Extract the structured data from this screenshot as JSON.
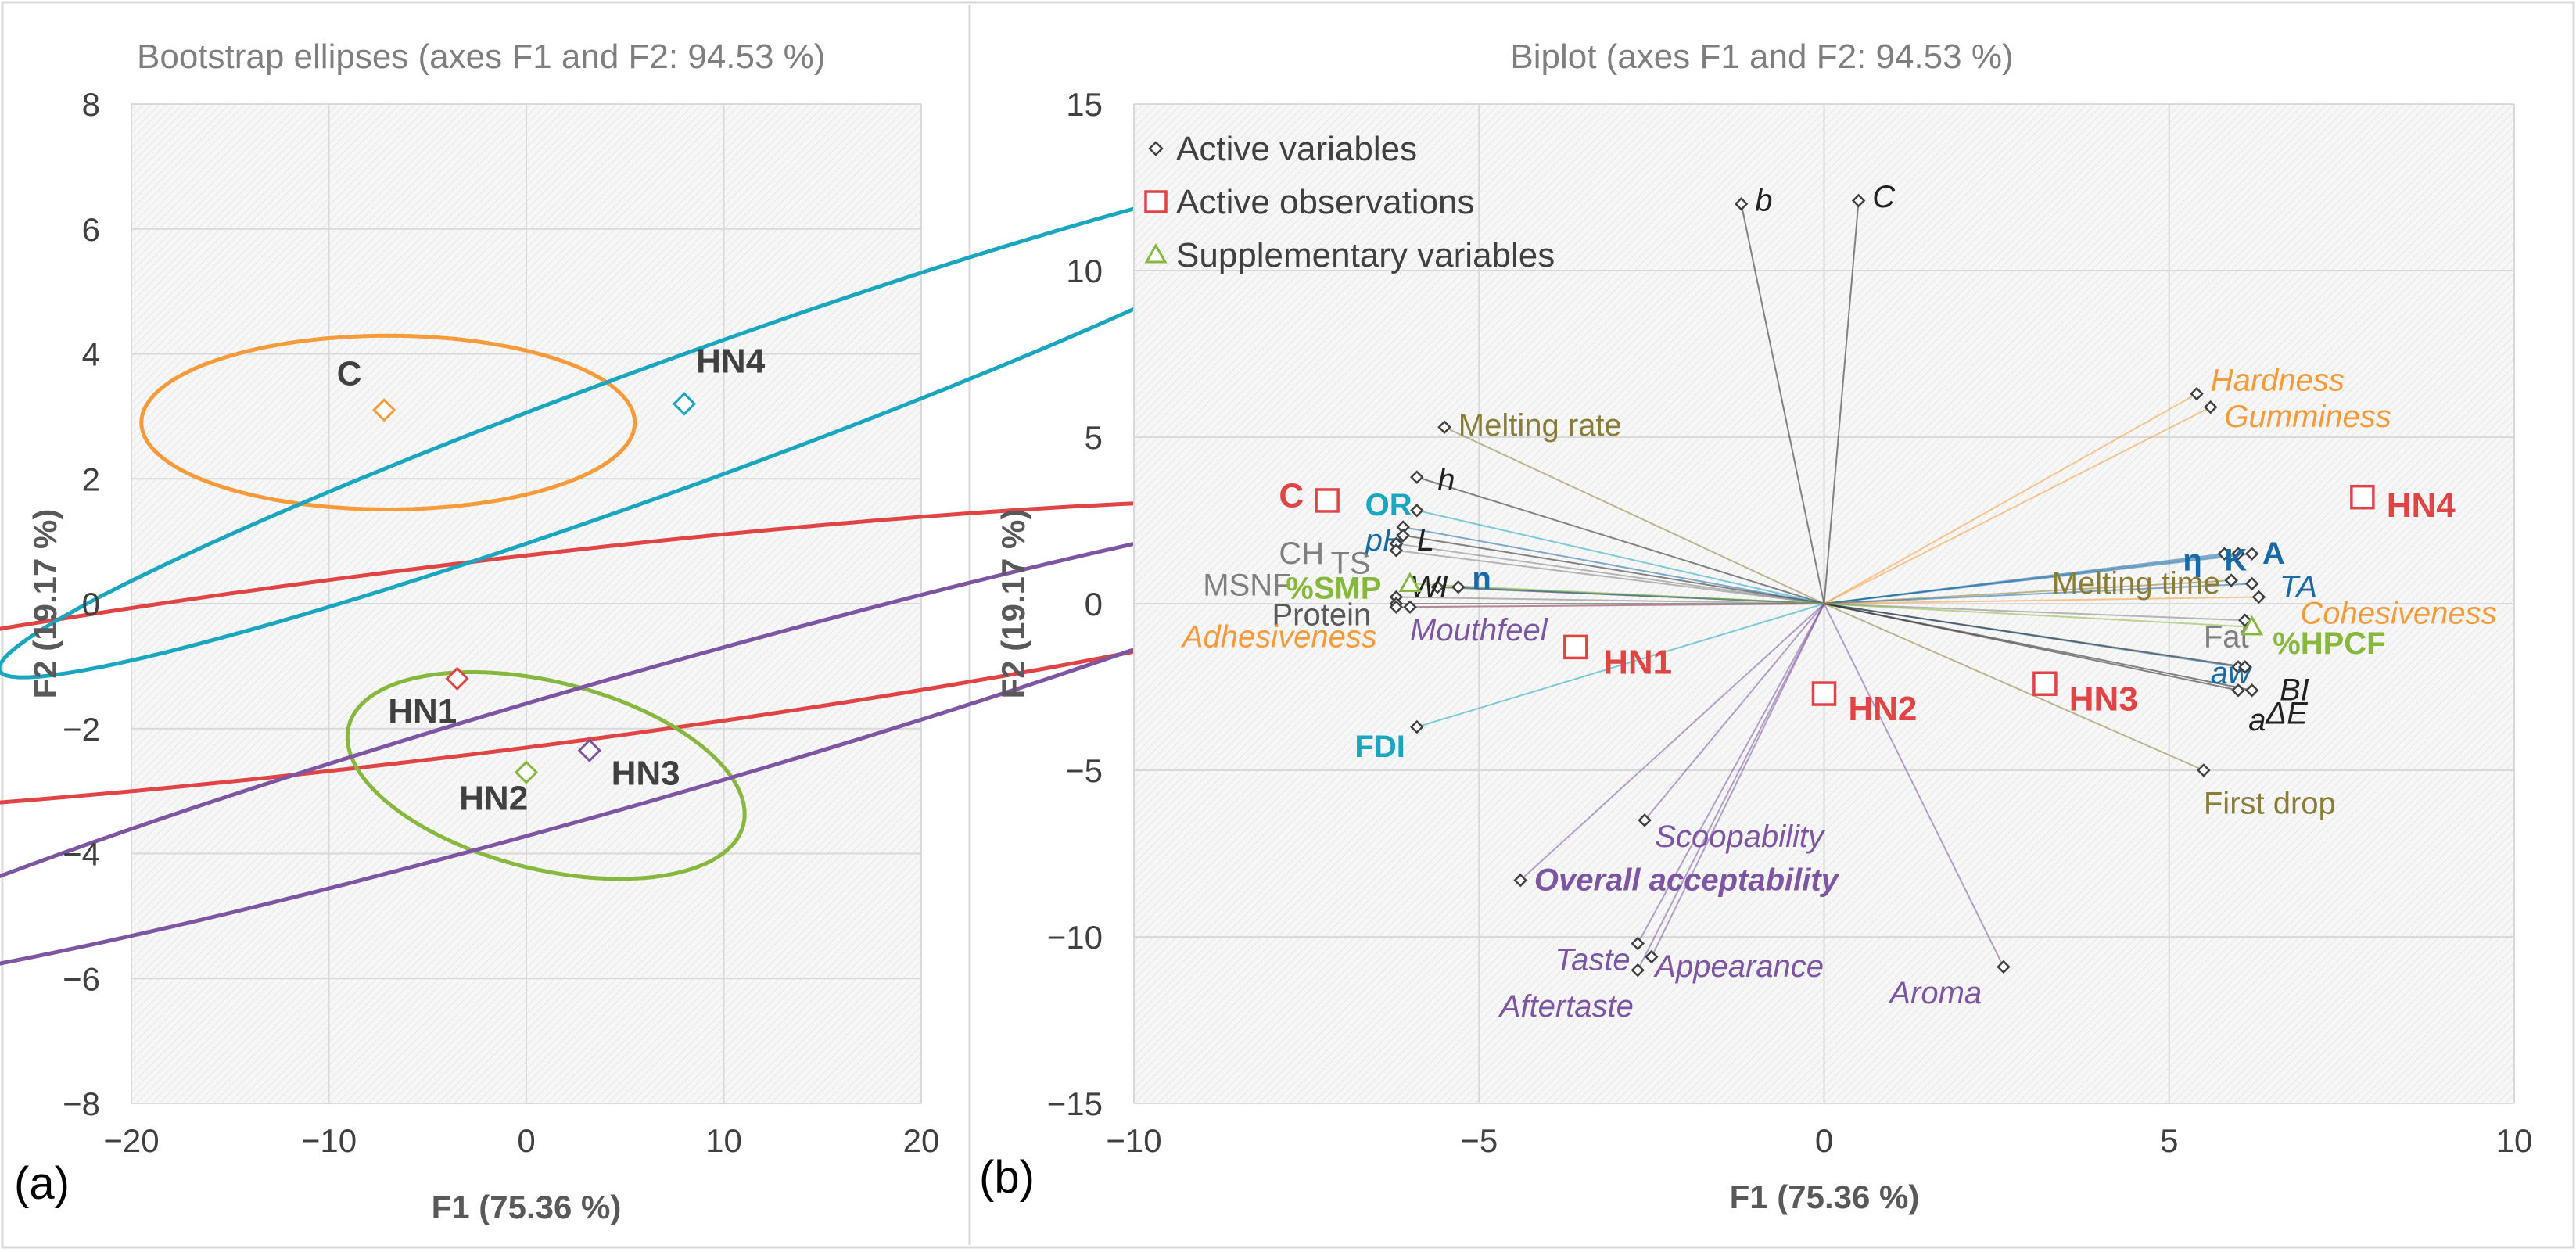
{
  "figure_labels": {
    "panel_a": "(a)",
    "panel_b": "(b)"
  },
  "colors": {
    "C": "#f79a3a",
    "HN1": "#e04444",
    "HN2": "#86b83e",
    "HN3": "#7d55a3",
    "HN4": "#1aa6bf",
    "grid": "#d9d9d9",
    "plotbg": "#f5f5f5"
  },
  "chart_data": [
    {
      "type": "scatter",
      "title": "Bootstrap ellipses (axes F1 and F2: 94.53 %)",
      "xlabel": "F1 (75.36 %)",
      "ylabel": "F2 (19.17 %)",
      "xlim": [
        -20,
        20
      ],
      "ylim": [
        -8,
        8
      ],
      "xticks": [
        "−20",
        "−10",
        "0",
        "10",
        "20"
      ],
      "yticks": [
        "−8",
        "−6",
        "−4",
        "−2",
        "0",
        "2",
        "4",
        "6",
        "8"
      ],
      "grid": true,
      "points": [
        {
          "label": "C",
          "x": -7.2,
          "y": 3.1,
          "color": "#f79a3a",
          "lx": -9.6,
          "ly": 3.5
        },
        {
          "label": "HN1",
          "x": -3.5,
          "y": -1.2,
          "color": "#e04444",
          "lx": -7.0,
          "ly": -1.9
        },
        {
          "label": "HN2",
          "x": 0.0,
          "y": -2.7,
          "color": "#86b83e",
          "lx": -3.4,
          "ly": -3.3
        },
        {
          "label": "HN3",
          "x": 3.2,
          "y": -2.35,
          "color": "#7d55a3",
          "lx": 4.3,
          "ly": -2.9
        },
        {
          "label": "HN4",
          "x": 8.0,
          "y": 3.2,
          "color": "#1aa6bf",
          "lx": 8.6,
          "ly": 3.7
        }
      ],
      "ellipses": [
        {
          "name": "C",
          "cx": -7.0,
          "cy": 2.9,
          "rx": 4.4,
          "ry": 3.95,
          "angle": 90,
          "color": "#f79a3a"
        },
        {
          "name": "HN1",
          "cx": -3.5,
          "cy": -0.9,
          "rx": 5.5,
          "ry": 6.2,
          "angle": 97,
          "color": "#e04444",
          "ax": [
            4.84,
            17.1
          ]
        },
        {
          "name": "HN2",
          "cx": 1.0,
          "cy": -2.75,
          "rx": 10.3,
          "ry": 2.0,
          "angle": -14,
          "color": "#86b83e",
          "ax": [
            10.3,
            1.5
          ]
        },
        {
          "name": "HN3",
          "cx": 5.1,
          "cy": -2.2,
          "rx": 7.6,
          "ry": 3.0,
          "angle": -74,
          "color": "#7d55a3",
          "ax": [
            3.25,
            13.8
          ]
        },
        {
          "name": "HN4",
          "cx": 7.8,
          "cy": 2.9,
          "rx": 3.8,
          "ry": 3.0,
          "angle": -70,
          "color": "#1aa6bf",
          "ax": [
            3.2,
            11.6
          ]
        }
      ]
    },
    {
      "type": "scatter",
      "title": "Biplot (axes F1 and F2: 94.53 %)",
      "xlabel": "F1 (75.36 %)",
      "ylabel": "F2 (19.17 %)",
      "xlim": [
        -10,
        10
      ],
      "ylim": [
        -15,
        15
      ],
      "xticks": [
        "−10",
        "−5",
        "0",
        "5",
        "10"
      ],
      "yticks": [
        "−15",
        "−10",
        "−5",
        "0",
        "5",
        "10",
        "15"
      ],
      "grid": true,
      "legend": [
        {
          "label": "Active variables",
          "marker": "diamond",
          "color": "#404040"
        },
        {
          "label": "Active observations",
          "marker": "square",
          "color": "#e04444"
        },
        {
          "label": "Supplementary variables",
          "marker": "triangle",
          "color": "#86b83e"
        }
      ],
      "active_variables": [
        {
          "label": "b",
          "x": -1.2,
          "y": 12.0,
          "color": "#222222",
          "italic": true,
          "lx": -1.0,
          "ly": 11.8
        },
        {
          "label": "C",
          "x": 0.5,
          "y": 12.1,
          "color": "#222222",
          "italic": true,
          "lx": 0.7,
          "ly": 11.9
        },
        {
          "label": "Hardness",
          "x": 5.4,
          "y": 6.3,
          "color": "#f79a3a",
          "italic": true,
          "lx": 5.6,
          "ly": 6.4
        },
        {
          "label": "Gumminess",
          "x": 5.6,
          "y": 5.9,
          "color": "#f79a3a",
          "italic": true,
          "lx": 5.8,
          "ly": 5.3
        },
        {
          "label": "Melting rate",
          "x": -5.5,
          "y": 5.3,
          "color": "#8a7d3a",
          "italic": false,
          "lx": -5.3,
          "ly": 5.05
        },
        {
          "label": "h",
          "x": -5.9,
          "y": 3.8,
          "color": "#222222",
          "italic": true,
          "lx": -5.6,
          "ly": 3.4
        },
        {
          "label": "OR",
          "x": -5.9,
          "y": 2.8,
          "color": "#1aa6bf",
          "italic": false,
          "bold": true,
          "lx": -6.65,
          "ly": 2.65
        },
        {
          "label": "pH",
          "x": -6.1,
          "y": 2.3,
          "color": "#1a6aa6",
          "italic": true,
          "lx": -6.65,
          "ly": 1.6
        },
        {
          "label": "L",
          "x": -6.1,
          "y": 2.05,
          "color": "#222222",
          "italic": true,
          "lx": -5.9,
          "ly": 1.6
        },
        {
          "label": "CH",
          "x": -6.2,
          "y": 1.8,
          "color": "#7f7f7f",
          "italic": false,
          "lx": -7.9,
          "ly": 1.2
        },
        {
          "label": "TS",
          "x": -6.2,
          "y": 1.6,
          "color": "#7f7f7f",
          "italic": false,
          "lx": -7.15,
          "ly": 0.9
        },
        {
          "label": "WI",
          "x": -5.6,
          "y": 0.5,
          "color": "#222222",
          "italic": true,
          "lx": -6.0,
          "ly": 0.2
        },
        {
          "label": "n",
          "x": -5.3,
          "y": 0.5,
          "color": "#1a6aa6",
          "italic": false,
          "bold": true,
          "lx": -5.1,
          "ly": 0.45
        },
        {
          "label": "MSNF",
          "x": -6.2,
          "y": 0.2,
          "color": "#7f7f7f",
          "italic": false,
          "lx": -9.0,
          "ly": 0.25
        },
        {
          "label": "Protein",
          "x": -6.2,
          "y": 0.0,
          "color": "#595959",
          "italic": false,
          "lx": -8.0,
          "ly": -0.65
        },
        {
          "label": "Adhesiveness",
          "x": -6.2,
          "y": -0.1,
          "color": "#f79a3a",
          "italic": true,
          "lx": -9.3,
          "ly": -1.3
        },
        {
          "label": "Mouthfeel",
          "x": -6.0,
          "y": -0.1,
          "color": "#7d55a3",
          "italic": true,
          "lx": -6.0,
          "ly": -1.1
        },
        {
          "label": "η",
          "x": 5.8,
          "y": 1.5,
          "color": "#1a6aa6",
          "italic": false,
          "bold": true,
          "lx": 5.2,
          "ly": 1.0
        },
        {
          "label": "K",
          "x": 6.0,
          "y": 1.5,
          "color": "#1a6aa6",
          "italic": false,
          "bold": true,
          "lx": 5.8,
          "ly": 1.0
        },
        {
          "label": "A",
          "x": 6.2,
          "y": 1.5,
          "color": "#1a6aa6",
          "italic": false,
          "bold": true,
          "lx": 6.35,
          "ly": 1.2
        },
        {
          "label": "Melting time",
          "x": 5.9,
          "y": 0.7,
          "color": "#8a7d3a",
          "italic": false,
          "lx": 3.3,
          "ly": 0.3
        },
        {
          "label": "TA",
          "x": 6.2,
          "y": 0.6,
          "color": "#1a6aa6",
          "italic": true,
          "lx": 6.6,
          "ly": 0.2
        },
        {
          "label": "Cohesiveness",
          "x": 6.3,
          "y": 0.2,
          "color": "#f79a3a",
          "italic": true,
          "lx": 6.9,
          "ly": -0.6
        },
        {
          "label": "Fat",
          "x": 6.1,
          "y": -0.5,
          "color": "#7f7f7f",
          "italic": false,
          "lx": 5.5,
          "ly": -1.3
        },
        {
          "label": "aw",
          "x": 6.0,
          "y": -1.9,
          "color": "#1a6aa6",
          "italic": true,
          "lx": 5.6,
          "ly": -2.4
        },
        {
          "label": "BI",
          "x": 6.1,
          "y": -1.9,
          "color": "#222222",
          "italic": true,
          "lx": 6.6,
          "ly": -2.9
        },
        {
          "label": "a",
          "x": 6.0,
          "y": -2.6,
          "color": "#222222",
          "italic": true,
          "lx": 6.15,
          "ly": -3.8
        },
        {
          "label": "ΔE",
          "x": 6.2,
          "y": -2.6,
          "color": "#222222",
          "italic": true,
          "lx": 6.4,
          "ly": -3.6
        },
        {
          "label": "FDI",
          "x": -5.9,
          "y": -3.7,
          "color": "#1aa6bf",
          "italic": false,
          "bold": true,
          "lx": -6.8,
          "ly": -4.6
        },
        {
          "label": "First drop",
          "x": 5.5,
          "y": -5.0,
          "color": "#8a7d3a",
          "italic": false,
          "lx": 5.5,
          "ly": -6.3
        },
        {
          "label": "Scoopability",
          "x": -2.6,
          "y": -6.5,
          "color": "#7d55a3",
          "italic": true,
          "lx": -2.45,
          "ly": -7.3
        },
        {
          "label": "Overall acceptability",
          "x": -4.4,
          "y": -8.3,
          "color": "#7d55a3",
          "italic": true,
          "bold": true,
          "lx": -4.2,
          "ly": -8.6
        },
        {
          "label": "Taste",
          "x": -2.7,
          "y": -10.2,
          "color": "#7d55a3",
          "italic": true,
          "lx": -3.9,
          "ly": -11.0
        },
        {
          "label": "Appearance",
          "x": -2.5,
          "y": -10.6,
          "color": "#7d55a3",
          "italic": true,
          "lx": -2.45,
          "ly": -11.2
        },
        {
          "label": "Aftertaste",
          "x": -2.7,
          "y": -11.0,
          "color": "#7d55a3",
          "italic": true,
          "lx": -4.7,
          "ly": -12.4
        },
        {
          "label": "Aroma",
          "x": 2.6,
          "y": -10.9,
          "color": "#7d55a3",
          "italic": true,
          "lx": 0.95,
          "ly": -12.0
        }
      ],
      "supplementary_variables": [
        {
          "label": "%SMP",
          "x": -6.0,
          "y": 0.6,
          "color": "#86b83e",
          "lx": -7.8,
          "ly": 0.15
        },
        {
          "label": "%HPCF",
          "x": 6.2,
          "y": -0.7,
          "color": "#86b83e",
          "lx": 6.5,
          "ly": -1.5
        }
      ],
      "active_observations": [
        {
          "label": "C",
          "x": -7.2,
          "y": 3.1,
          "color": "#e04444",
          "lx": -7.9,
          "ly": 2.9
        },
        {
          "label": "HN1",
          "x": -3.6,
          "y": -1.3,
          "color": "#e04444",
          "lx": -3.2,
          "ly": -2.1
        },
        {
          "label": "HN2",
          "x": 0.0,
          "y": -2.7,
          "color": "#e04444",
          "lx": 0.35,
          "ly": -3.5
        },
        {
          "label": "HN3",
          "x": 3.2,
          "y": -2.4,
          "color": "#e04444",
          "lx": 3.55,
          "ly": -3.2
        },
        {
          "label": "HN4",
          "x": 7.8,
          "y": 3.2,
          "color": "#e04444",
          "lx": 8.15,
          "ly": 2.6
        }
      ]
    }
  ]
}
